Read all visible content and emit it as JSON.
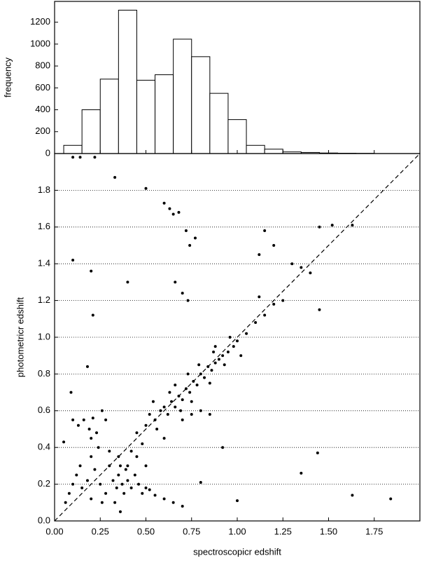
{
  "chart_data": [
    {
      "type": "histogram",
      "ylabel": "frequency",
      "bins": [
        0.05,
        0.15,
        0.25,
        0.35,
        0.45,
        0.55,
        0.65,
        0.75,
        0.85,
        0.95,
        1.05,
        1.15,
        1.25,
        1.35,
        1.45,
        1.55,
        1.65,
        1.75
      ],
      "values": [
        75,
        400,
        680,
        1310,
        670,
        720,
        1045,
        885,
        550,
        310,
        75,
        40,
        15,
        10,
        5,
        3,
        2
      ],
      "color": "#ffffff",
      "xlim": [
        0,
        2
      ],
      "xticks": [
        0,
        0.25,
        0.5,
        0.75,
        1,
        1.25,
        1.5,
        1.75
      ],
      "ylim": [
        0,
        1390
      ],
      "yticks": [
        0,
        200,
        400,
        600,
        800,
        1000,
        1200
      ]
    },
    {
      "type": "scatter",
      "xlabel": "spectroscopicr edshift",
      "ylabel": "photometricr edshift",
      "color": "#000000",
      "grid": true,
      "diagonal": true,
      "xlim": [
        0,
        2
      ],
      "ylim": [
        0,
        2
      ],
      "xticks": [
        {
          "value": 0,
          "label": "0.00"
        },
        {
          "value": 0.25,
          "label": "0.25"
        },
        {
          "value": 0.5,
          "label": "0.50"
        },
        {
          "value": 0.75,
          "label": "0.75"
        },
        {
          "value": 1,
          "label": "1.00"
        },
        {
          "value": 1.25,
          "label": "1.25"
        },
        {
          "value": 1.5,
          "label": "1.50"
        },
        {
          "value": 1.75,
          "label": "1.75"
        }
      ],
      "yticks": [
        {
          "value": 0,
          "label": "0.0"
        },
        {
          "value": 0.2,
          "label": "0.2"
        },
        {
          "value": 0.4,
          "label": "0.4"
        },
        {
          "value": 0.6,
          "label": "0.6"
        },
        {
          "value": 0.8,
          "label": "0.8"
        },
        {
          "value": 1,
          "label": "1.0"
        },
        {
          "value": 1.2,
          "label": "1.2"
        },
        {
          "value": 1.4,
          "label": "1.4"
        },
        {
          "value": 1.6,
          "label": "1.6"
        },
        {
          "value": 1.8,
          "label": "1.8"
        }
      ],
      "x": [
        0.08,
        0.1,
        0.12,
        0.15,
        0.18,
        0.2,
        0.22,
        0.25,
        0.28,
        0.3,
        0.32,
        0.34,
        0.35,
        0.36,
        0.37,
        0.38,
        0.39,
        0.4,
        0.42,
        0.44,
        0.46,
        0.48,
        0.5,
        0.52,
        0.55,
        0.6,
        0.65,
        0.7,
        0.33,
        0.36,
        0.3,
        0.35,
        0.4,
        0.26,
        0.14,
        0.06,
        0.2,
        0.24,
        0.45,
        0.5,
        0.1,
        0.13,
        0.16,
        0.19,
        0.21,
        0.23,
        0.26,
        0.28,
        0.09,
        0.2,
        0.45,
        0.5,
        0.52,
        0.55,
        0.58,
        0.6,
        0.62,
        0.64,
        0.66,
        0.68,
        0.7,
        0.72,
        0.74,
        0.76,
        0.78,
        0.8,
        0.82,
        0.84,
        0.86,
        0.88,
        0.9,
        0.92,
        0.95,
        0.98,
        1.0,
        1.05,
        1.1,
        1.15,
        1.2,
        0.56,
        0.63,
        0.69,
        0.75,
        0.79,
        0.85,
        0.87,
        0.93,
        0.6,
        0.7,
        0.8,
        0.85,
        0.75,
        0.48,
        0.42,
        0.54,
        0.66,
        0.73,
        0.88,
        0.96,
        1.02,
        0.1,
        0.14,
        0.22,
        0.33,
        0.5,
        0.6,
        0.63,
        0.65,
        0.68,
        0.72,
        0.77,
        0.74,
        0.66,
        0.7,
        0.73,
        0.4,
        0.2,
        0.1,
        0.21,
        0.18,
        1.15,
        1.12,
        1.2,
        1.3,
        1.35,
        1.45,
        1.52,
        1.63,
        1.45,
        1.44,
        1.35,
        1.63,
        1.84,
        1.0,
        0.92,
        0.8,
        1.12,
        1.25,
        1.4,
        0.05
      ],
      "values": [
        0.15,
        0.2,
        0.25,
        0.18,
        0.22,
        0.12,
        0.28,
        0.2,
        0.15,
        0.3,
        0.22,
        0.18,
        0.25,
        0.3,
        0.2,
        0.15,
        0.28,
        0.22,
        0.18,
        0.25,
        0.2,
        0.15,
        0.18,
        0.17,
        0.14,
        0.12,
        0.1,
        0.08,
        0.1,
        0.05,
        0.38,
        0.35,
        0.3,
        0.1,
        0.3,
        0.1,
        0.35,
        0.4,
        0.35,
        0.3,
        0.55,
        0.52,
        0.55,
        0.5,
        0.56,
        0.48,
        0.6,
        0.55,
        0.7,
        0.45,
        0.48,
        0.52,
        0.58,
        0.55,
        0.6,
        0.62,
        0.58,
        0.65,
        0.62,
        0.68,
        0.66,
        0.72,
        0.7,
        0.76,
        0.74,
        0.8,
        0.78,
        0.84,
        0.82,
        0.86,
        0.88,
        0.9,
        0.92,
        0.95,
        0.98,
        1.02,
        1.08,
        1.12,
        1.18,
        0.5,
        0.7,
        0.6,
        0.65,
        0.85,
        0.75,
        0.92,
        0.85,
        0.45,
        0.55,
        0.6,
        0.58,
        0.58,
        0.42,
        0.38,
        0.65,
        0.74,
        0.8,
        0.95,
        1.0,
        0.9,
        1.98,
        1.98,
        1.98,
        1.87,
        1.81,
        1.73,
        1.7,
        1.67,
        1.68,
        1.58,
        1.54,
        1.5,
        1.3,
        1.24,
        1.2,
        1.3,
        1.36,
        1.42,
        1.12,
        0.84,
        1.58,
        1.45,
        1.5,
        1.4,
        1.38,
        1.6,
        1.61,
        1.61,
        1.15,
        0.37,
        0.26,
        0.14,
        0.12,
        0.11,
        0.4,
        0.21,
        1.22,
        1.2,
        1.35,
        0.43
      ]
    }
  ]
}
